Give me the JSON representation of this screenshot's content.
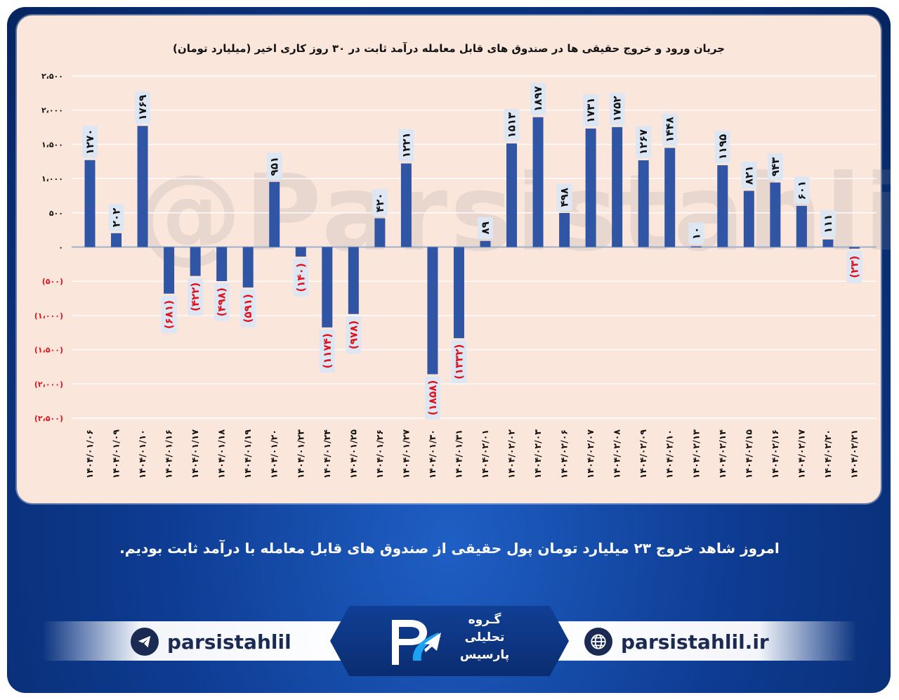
{
  "chart_data": {
    "type": "bar",
    "title": "جریان ورود و خروج حقیقی ها در صندوق های قابل معامله درآمد ثابت در ۳۰ روز کاری اخیر (میلیارد تومان)",
    "ylim": [
      -2500,
      2500
    ],
    "yticks": [
      2500,
      2000,
      1500,
      1000,
      500,
      0,
      -500,
      -1000,
      -1500,
      -2000,
      -2500
    ],
    "ytick_labels": [
      "۲،۵۰۰",
      "۲،۰۰۰",
      "۱،۵۰۰",
      "۱،۰۰۰",
      "۵۰۰",
      "۰",
      "(۵۰۰)",
      "(۱،۰۰۰)",
      "(۱،۵۰۰)",
      "(۲،۰۰۰)",
      "(۲،۵۰۰)"
    ],
    "grid": true,
    "categories": [
      "۱۴۰۴/۰۱/۰۶",
      "۱۴۰۴/۰۱/۰۹",
      "۱۴۰۴/۰۱/۱۰",
      "۱۴۰۴/۰۱/۱۶",
      "۱۴۰۴/۰۱/۱۷",
      "۱۴۰۴/۰۱/۱۸",
      "۱۴۰۴/۰۱/۱۹",
      "۱۴۰۴/۰۱/۲۰",
      "۱۴۰۴/۰۱/۲۳",
      "۱۴۰۴/۰۱/۲۴",
      "۱۴۰۴/۰۱/۲۵",
      "۱۴۰۴/۰۱/۲۶",
      "۱۴۰۴/۰۱/۲۷",
      "۱۴۰۴/۰۱/۳۰",
      "۱۴۰۴/۰۱/۳۱",
      "۱۴۰۴/۰۲/۰۱",
      "۱۴۰۴/۰۲/۰۲",
      "۱۴۰۴/۰۲/۰۳",
      "۱۴۰۴/۰۲/۰۶",
      "۱۴۰۴/۰۲/۰۷",
      "۱۴۰۴/۰۲/۰۸",
      "۱۴۰۴/۰۲/۰۹",
      "۱۴۰۴/۰۲/۱۰",
      "۱۴۰۴/۰۲/۱۳",
      "۱۴۰۴/۰۲/۱۴",
      "۱۴۰۴/۰۲/۱۵",
      "۱۴۰۴/۰۲/۱۶",
      "۱۴۰۴/۰۲/۱۷",
      "۱۴۰۴/۰۲/۲۰",
      "۱۴۰۴/۰۲/۲۱"
    ],
    "values": [
      1270,
      202,
      1769,
      -681,
      -422,
      -498,
      -591,
      951,
      -140,
      -1174,
      -978,
      420,
      1221,
      -1858,
      -1332,
      89,
      1513,
      1897,
      498,
      1731,
      1752,
      1267,
      1448,
      10,
      1195,
      821,
      943,
      601,
      111,
      -23
    ],
    "value_labels": [
      "۱۲۷۰",
      "۲۰۲",
      "۱۷۶۹",
      "(۶۸۱)",
      "(۴۲۲)",
      "(۴۹۸)",
      "(۵۹۱)",
      "۹۵۱",
      "(۱۴۰)",
      "(۱۱۷۴)",
      "(۹۷۸)",
      "۴۲۰",
      "۱۲۲۱",
      "(۱۸۵۸)",
      "(۱۳۳۲)",
      "۸۹",
      "۱۵۱۳",
      "۱۸۹۷",
      "۴۹۸",
      "۱۷۳۱",
      "۱۷۵۲",
      "۱۲۶۷",
      "۱۴۴۸",
      "۱۰",
      "۱۱۹۵",
      "۸۲۱",
      "۹۴۳",
      "۶۰۱",
      "۱۱۱",
      "(۲۳)"
    ]
  },
  "colors": {
    "bar": "#2f55a4",
    "positive_text": "#111111",
    "negative_text": "#e0121b",
    "label_box": "#dde7f3",
    "panel": "#fbe6db"
  },
  "watermark": "@Parsistahlil",
  "message": "امروز شاهد خروج ۲۳ میلیارد تومان پول حقیقی از صندوق های قابل معامله با درآمد ثابت بودیم.",
  "footer": {
    "telegram_handle": "parsistahlil",
    "telegram_icon": "telegram-icon",
    "website": "parsistahlil.ir",
    "website_icon": "globe-icon",
    "logo_line1": "گـروه",
    "logo_line2": "تحلیلی",
    "logo_line3": "پارسیس"
  }
}
